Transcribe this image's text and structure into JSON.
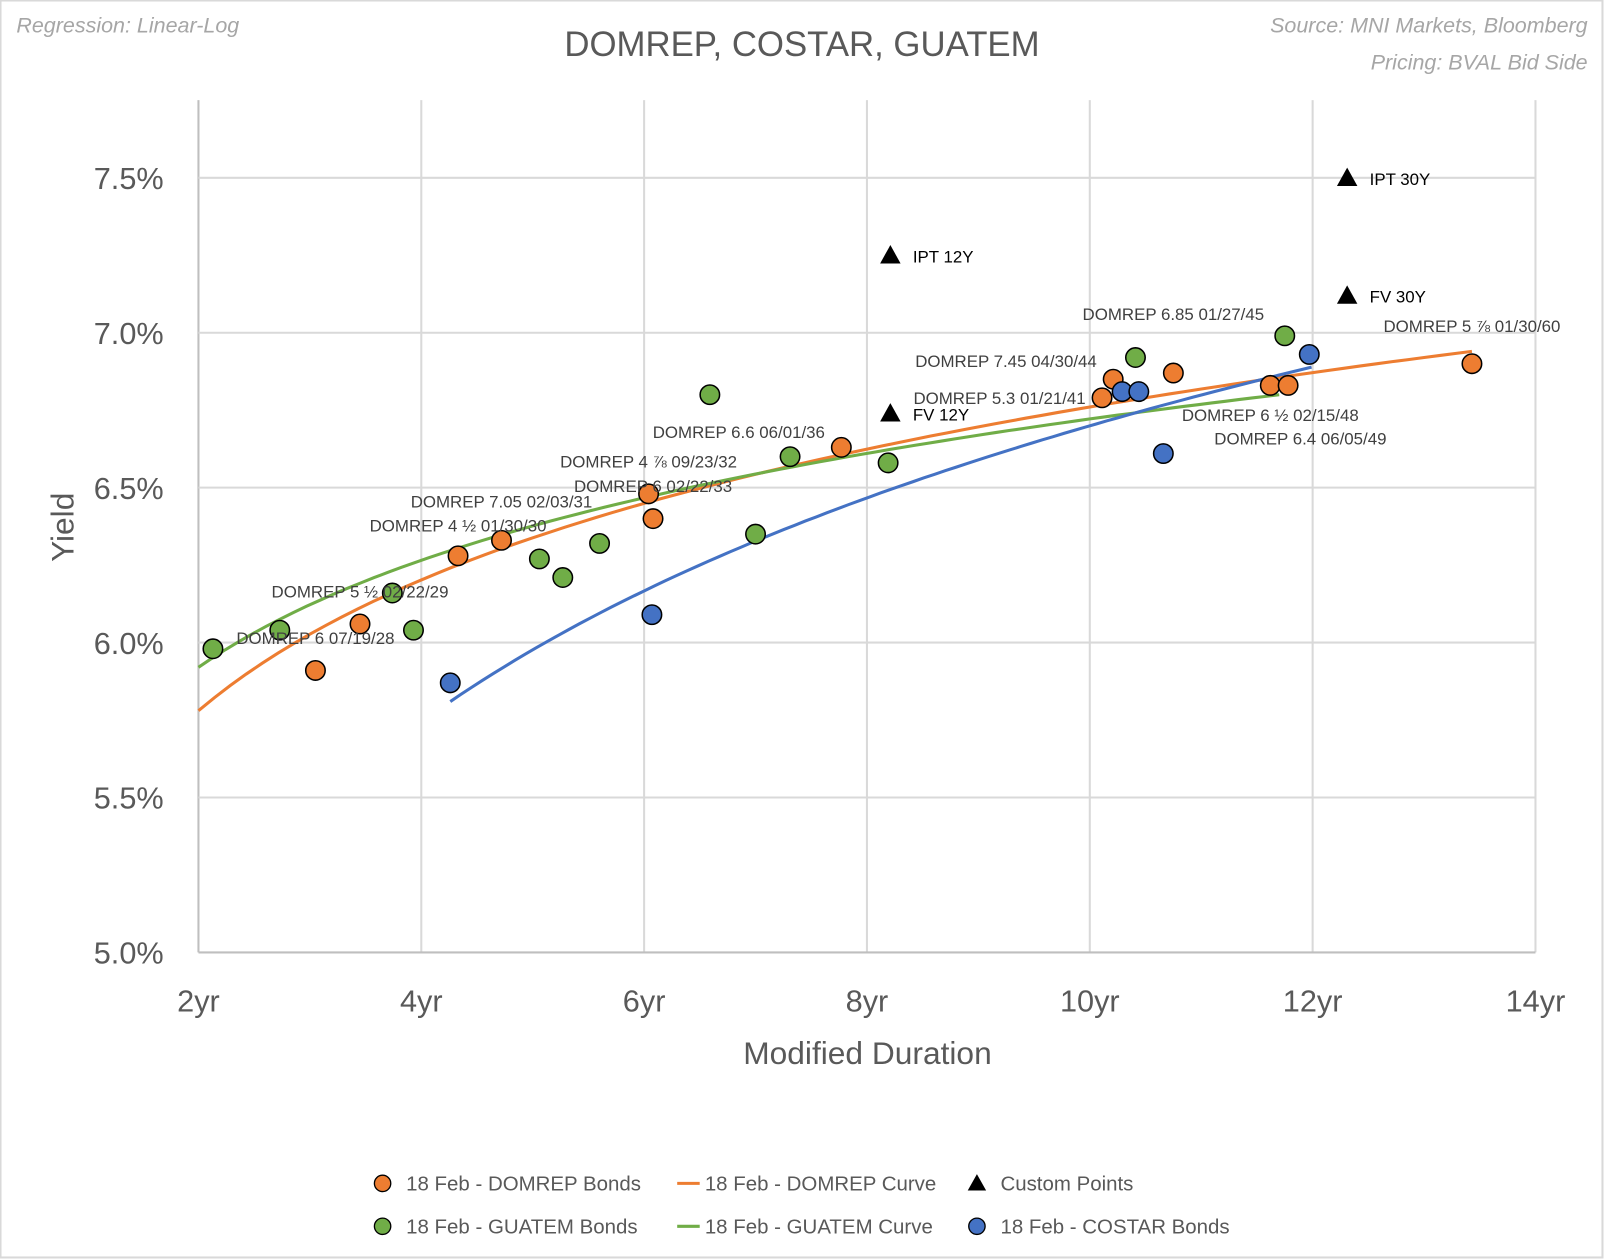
{
  "header": {
    "regression_note": "Regression: Linear-Log",
    "title": "DOMREP, COSTAR, GUATEM",
    "source_note": "Source: MNI Markets, Bloomberg",
    "pricing_note": "Pricing: BVAL Bid Side"
  },
  "chart_data": {
    "type": "scatter",
    "title": "DOMREP, COSTAR, GUATEM",
    "xlabel": "Modified Duration",
    "ylabel": "Yield",
    "xlim": [
      2,
      14
    ],
    "ylim": [
      5.0,
      7.75
    ],
    "x_ticks": [
      2,
      4,
      6,
      8,
      10,
      12,
      14
    ],
    "x_tick_labels": [
      "2yr",
      "4yr",
      "6yr",
      "8yr",
      "10yr",
      "12yr",
      "14yr"
    ],
    "y_ticks": [
      5.0,
      5.5,
      6.0,
      6.5,
      7.0,
      7.5
    ],
    "y_tick_labels": [
      "5.0%",
      "5.5%",
      "6.0%",
      "6.5%",
      "7.0%",
      "7.5%"
    ],
    "grid": true,
    "legend_position": "bottom",
    "colors": {
      "domrep": "#ed7d31",
      "guatem": "#70ad47",
      "costar": "#4472c4",
      "custom": "#000000"
    },
    "series": [
      {
        "name": "18 Feb - DOMREP Bonds",
        "kind": "points",
        "color": "#ed7d31",
        "points": [
          {
            "x": 3.05,
            "y": 5.91,
            "label": "DOMREP 6 07/19/28"
          },
          {
            "x": 3.45,
            "y": 6.06,
            "label": "DOMREP 5 ½ 02/22/29"
          },
          {
            "x": 4.33,
            "y": 6.28,
            "label": "DOMREP 4 ½ 01/30/30"
          },
          {
            "x": 4.72,
            "y": 6.33,
            "label": "DOMREP 7.05 02/03/31"
          },
          {
            "x": 6.04,
            "y": 6.48,
            "label": "DOMREP 4 ⅞ 09/23/32"
          },
          {
            "x": 6.08,
            "y": 6.4,
            "label": "DOMREP 6 02/22/33"
          },
          {
            "x": 7.77,
            "y": 6.63,
            "label": "DOMREP 6.6 06/01/36"
          },
          {
            "x": 10.11,
            "y": 6.79,
            "label": "DOMREP 5.3 01/21/41"
          },
          {
            "x": 10.21,
            "y": 6.85,
            "label": "DOMREP 7.45 04/30/44"
          },
          {
            "x": 10.75,
            "y": 6.87,
            "label": "DOMREP 6.85 01/27/45"
          },
          {
            "x": 11.62,
            "y": 6.83,
            "label": "DOMREP 6 ½ 02/15/48"
          },
          {
            "x": 11.78,
            "y": 6.83,
            "label": "DOMREP 6.4 06/05/49"
          },
          {
            "x": 13.43,
            "y": 6.9,
            "label": "DOMREP 5 ⅞ 01/30/60"
          }
        ]
      },
      {
        "name": "18 Feb - DOMREP Curve",
        "kind": "curve",
        "color": "#ed7d31",
        "model": "y = a + b*ln(x)",
        "a": 5.358,
        "b": 0.609,
        "x_range": [
          2,
          13.43
        ]
      },
      {
        "name": "Custom Points",
        "kind": "triangles",
        "color": "#000000",
        "points": [
          {
            "x": 8.21,
            "y": 7.25,
            "label": "IPT 12Y"
          },
          {
            "x": 8.21,
            "y": 6.74,
            "label": "FV 12Y"
          },
          {
            "x": 12.31,
            "y": 7.5,
            "label": "IPT 30Y"
          },
          {
            "x": 12.31,
            "y": 7.12,
            "label": "FV 30Y"
          }
        ]
      },
      {
        "name": "18 Feb - GUATEM Bonds",
        "kind": "points",
        "color": "#70ad47",
        "points": [
          {
            "x": 2.13,
            "y": 5.98
          },
          {
            "x": 2.73,
            "y": 6.04
          },
          {
            "x": 3.74,
            "y": 6.16
          },
          {
            "x": 3.93,
            "y": 6.04
          },
          {
            "x": 5.06,
            "y": 6.27
          },
          {
            "x": 5.27,
            "y": 6.21
          },
          {
            "x": 5.6,
            "y": 6.32
          },
          {
            "x": 6.59,
            "y": 6.8
          },
          {
            "x": 7.0,
            "y": 6.35
          },
          {
            "x": 7.31,
            "y": 6.6
          },
          {
            "x": 8.19,
            "y": 6.58
          },
          {
            "x": 10.41,
            "y": 6.92
          },
          {
            "x": 11.75,
            "y": 6.99
          }
        ]
      },
      {
        "name": "18 Feb - GUATEM Curve",
        "kind": "curve",
        "color": "#70ad47",
        "model": "y = a + b*ln(x)",
        "a": 5.575,
        "b": 0.498,
        "x_range": [
          2,
          11.7
        ]
      },
      {
        "name": "18 Feb - COSTAR Bonds",
        "kind": "points",
        "color": "#4472c4",
        "points": [
          {
            "x": 4.26,
            "y": 5.87
          },
          {
            "x": 6.07,
            "y": 6.09
          },
          {
            "x": 10.29,
            "y": 6.81
          },
          {
            "x": 10.44,
            "y": 6.81
          },
          {
            "x": 10.66,
            "y": 6.61
          },
          {
            "x": 11.97,
            "y": 6.93
          }
        ]
      },
      {
        "name": "COSTAR Curve",
        "kind": "curve",
        "color": "#4472c4",
        "model": "y = a + b*ln(x)",
        "a": 4.298,
        "b": 1.043,
        "x_range": [
          4.26,
          11.99
        ],
        "in_legend": false
      }
    ]
  },
  "legend": {
    "items": [
      {
        "label": "18 Feb - DOMREP Bonds",
        "symbol": "circle",
        "color": "#ed7d31"
      },
      {
        "label": "18 Feb - DOMREP Curve",
        "symbol": "line",
        "color": "#ed7d31"
      },
      {
        "label": "Custom Points",
        "symbol": "triangle",
        "color": "#000000"
      },
      {
        "label": "18 Feb - GUATEM Bonds",
        "symbol": "circle",
        "color": "#70ad47"
      },
      {
        "label": "18 Feb - GUATEM Curve",
        "symbol": "line",
        "color": "#70ad47"
      },
      {
        "label": "18 Feb - COSTAR Bonds",
        "symbol": "circle",
        "color": "#4472c4"
      }
    ]
  }
}
